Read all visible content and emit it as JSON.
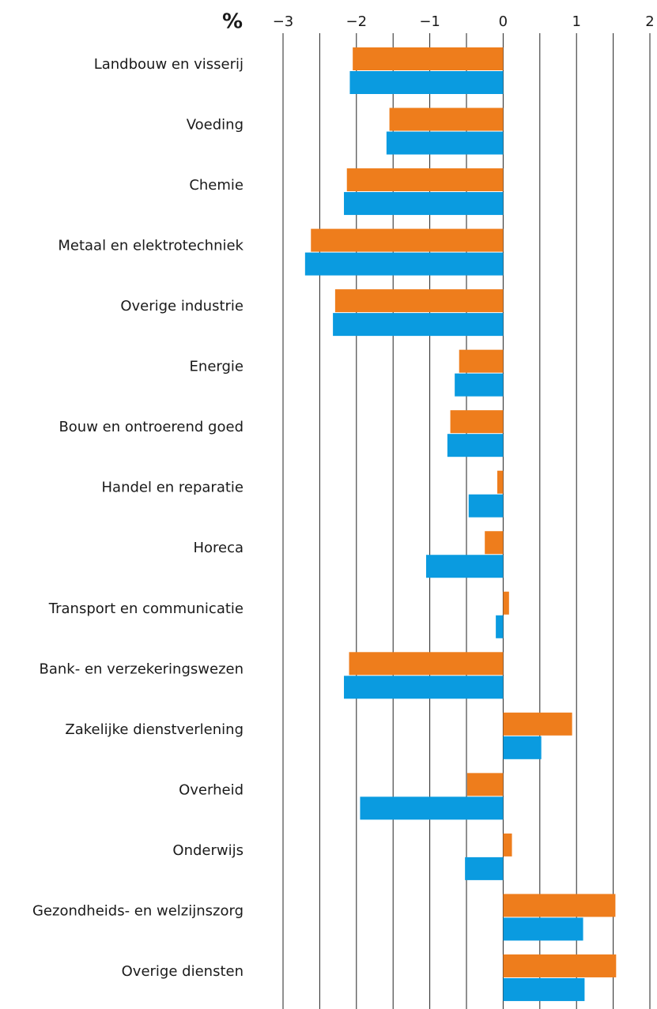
{
  "chart_data": {
    "type": "bar",
    "orientation": "horizontal",
    "xlabel": "%",
    "categories": [
      "Landbouw en visserij",
      "Voeding",
      "Chemie",
      "Metaal en elektrotechniek",
      "Overige industrie",
      "Energie",
      "Bouw en ontroerend goed",
      "Handel en reparatie",
      "Horeca",
      "Transport en communicatie",
      "Bank- en verzekeringswezen",
      "Zakelijke dienstverlening",
      "Overheid",
      "Onderwijs",
      "Gezondheids- en welzijnszorg",
      "Overige diensten"
    ],
    "series": [
      {
        "color": "#ee7d1c",
        "values": [
          -2.05,
          -1.55,
          -2.13,
          -2.62,
          -2.29,
          -0.6,
          -0.72,
          -0.08,
          -0.25,
          0.08,
          -2.1,
          0.94,
          -0.49,
          0.12,
          1.53,
          1.54
        ]
      },
      {
        "color": "#0a9be0",
        "values": [
          -2.09,
          -1.59,
          -2.17,
          -2.7,
          -2.32,
          -0.66,
          -0.76,
          -0.47,
          -1.05,
          -0.1,
          -2.17,
          0.52,
          -1.95,
          -0.52,
          1.09,
          1.11
        ]
      }
    ],
    "xlim": [
      -3,
      2
    ],
    "xticks": [
      {
        "value": -3,
        "label": "−3"
      },
      {
        "value": -2,
        "label": "−2"
      },
      {
        "value": -1,
        "label": "−1"
      },
      0,
      1,
      2
    ],
    "xminorticks": [
      -2.5,
      -1.5,
      -0.5,
      0.5,
      1.5
    ],
    "grid": true
  }
}
